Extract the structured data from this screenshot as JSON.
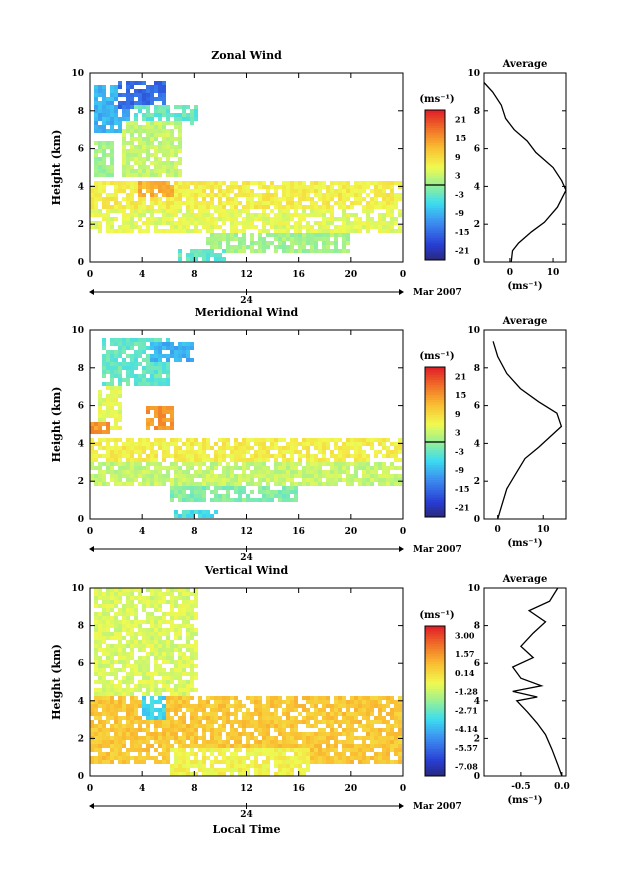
{
  "chart_data": [
    {
      "type": "heatmap",
      "title": "Zonal Wind",
      "ylabel": "Height (km)",
      "xlabel": "",
      "xlim": [
        0,
        24
      ],
      "ylim": [
        0,
        10
      ],
      "x_ticks": [
        "0",
        "4",
        "8",
        "12",
        "16",
        "20",
        "0"
      ],
      "y_ticks": [
        "0",
        "2",
        "4",
        "6",
        "8",
        "10"
      ],
      "day_label": "24",
      "date_label": "Mar 2007",
      "colorbar": {
        "unit": "(ms⁻¹)",
        "ticks": [
          "-21",
          "-15",
          "-9",
          "-3",
          "3",
          "9",
          "15",
          "21"
        ],
        "zero_line": true
      },
      "average_panel": {
        "title": "Average",
        "x_ticks": [
          "0",
          "10"
        ],
        "xlim": [
          -6,
          13
        ],
        "xlabel": "(ms⁻¹)",
        "profile": [
          [
            0.3,
            0
          ],
          [
            0.6,
            0.6
          ],
          [
            2,
            1.0
          ],
          [
            5,
            1.6
          ],
          [
            8,
            2.1
          ],
          [
            11,
            2.9
          ],
          [
            13,
            3.8
          ],
          [
            12,
            4.3
          ],
          [
            10,
            5.0
          ],
          [
            6,
            5.8
          ],
          [
            4,
            6.4
          ],
          [
            1,
            7.0
          ],
          [
            -1,
            7.6
          ],
          [
            -2,
            8.3
          ],
          [
            -4,
            9.0
          ],
          [
            -6,
            9.5
          ]
        ]
      },
      "regions": [
        {
          "x0": 0.3,
          "x1": 3.2,
          "y0": 6.8,
          "y1": 9.3,
          "v": -9
        },
        {
          "x0": 2.3,
          "x1": 5.8,
          "y0": 8.1,
          "y1": 9.6,
          "v": -15
        },
        {
          "x0": 3.5,
          "x1": 8.3,
          "y0": 7.2,
          "y1": 8.4,
          "v": -3
        },
        {
          "x0": 0.3,
          "x1": 1.8,
          "y0": 4.5,
          "y1": 6.4,
          "v": 1
        },
        {
          "x0": 2.5,
          "x1": 7.0,
          "y0": 4.6,
          "y1": 7.4,
          "v": 3
        },
        {
          "x0": 0,
          "x1": 24,
          "y0": 2.6,
          "y1": 4.3,
          "v": 7
        },
        {
          "x0": 0,
          "x1": 24,
          "y0": 1.6,
          "y1": 2.7,
          "v": 5
        },
        {
          "x0": 3.8,
          "x1": 6.5,
          "y0": 3.4,
          "y1": 4.3,
          "v": 13
        },
        {
          "x0": 9,
          "x1": 20,
          "y0": 0.4,
          "y1": 1.6,
          "v": 1
        },
        {
          "x0": 6.8,
          "x1": 10.5,
          "y0": 0,
          "y1": 0.6,
          "v": -3
        }
      ]
    },
    {
      "type": "heatmap",
      "title": "Meridional Wind",
      "ylabel": "Height (km)",
      "xlabel": "",
      "xlim": [
        0,
        24
      ],
      "ylim": [
        0,
        10
      ],
      "x_ticks": [
        "0",
        "4",
        "8",
        "12",
        "16",
        "20",
        "0"
      ],
      "y_ticks": [
        "0",
        "2",
        "4",
        "6",
        "8",
        "10"
      ],
      "day_label": "24",
      "date_label": "Mar 2007",
      "colorbar": {
        "unit": "(ms⁻¹)",
        "ticks": [
          "-21",
          "-15",
          "-9",
          "-3",
          "3",
          "9",
          "15",
          "21"
        ],
        "zero_line": true
      },
      "average_panel": {
        "title": "Average",
        "x_ticks": [
          "0",
          "10"
        ],
        "xlim": [
          -3,
          15
        ],
        "xlabel": "(ms⁻¹)",
        "profile": [
          [
            0,
            0
          ],
          [
            1,
            0.8
          ],
          [
            2,
            1.6
          ],
          [
            4,
            2.4
          ],
          [
            6,
            3.2
          ],
          [
            9,
            3.8
          ],
          [
            14,
            4.9
          ],
          [
            13,
            5.6
          ],
          [
            9,
            6.2
          ],
          [
            5,
            6.9
          ],
          [
            2,
            7.7
          ],
          [
            0,
            8.6
          ],
          [
            -1,
            9.4
          ]
        ]
      },
      "regions": [
        {
          "x0": 1.0,
          "x1": 6.0,
          "y0": 7.0,
          "y1": 9.6,
          "v": -3
        },
        {
          "x0": 4.5,
          "x1": 8.0,
          "y0": 8.3,
          "y1": 9.4,
          "v": -9
        },
        {
          "x0": 0.5,
          "x1": 2.5,
          "y0": 4.8,
          "y1": 7.0,
          "v": 5
        },
        {
          "x0": 0,
          "x1": 1.5,
          "y0": 4.4,
          "y1": 5.2,
          "v": 15
        },
        {
          "x0": 4.3,
          "x1": 6.5,
          "y0": 4.8,
          "y1": 6.0,
          "v": 15
        },
        {
          "x0": 0,
          "x1": 24,
          "y0": 3.0,
          "y1": 4.3,
          "v": 7
        },
        {
          "x0": 0,
          "x1": 24,
          "y0": 1.8,
          "y1": 3.0,
          "v": 3
        },
        {
          "x0": 6,
          "x1": 16,
          "y0": 0.8,
          "y1": 1.8,
          "v": -1
        },
        {
          "x0": 6.5,
          "x1": 9.8,
          "y0": 0,
          "y1": 0.5,
          "v": -5
        }
      ]
    },
    {
      "type": "heatmap",
      "title": "Vertical Wind",
      "ylabel": "Height (km)",
      "xlabel": "Local Time",
      "xlim": [
        0,
        24
      ],
      "ylim": [
        0,
        10
      ],
      "x_ticks": [
        "0",
        "4",
        "8",
        "12",
        "16",
        "20",
        "0"
      ],
      "y_ticks": [
        "0",
        "2",
        "4",
        "6",
        "8",
        "10"
      ],
      "day_label": "24",
      "date_label": "Mar 2007",
      "colorbar": {
        "unit": "(ms⁻¹)",
        "ticks": [
          "-7.08",
          "-5.57",
          "-4.14",
          "-2.71",
          "-1.28",
          "0.14",
          "1.57",
          "3.00"
        ]
      },
      "average_panel": {
        "title": "Average",
        "x_ticks": [
          "-0.5",
          "0.0"
        ],
        "xlim": [
          -0.95,
          0.05
        ],
        "xlabel": "(ms⁻¹)",
        "profile": [
          [
            0,
            0
          ],
          [
            -0.05,
            0.6
          ],
          [
            -0.12,
            1.4
          ],
          [
            -0.2,
            2.2
          ],
          [
            -0.3,
            2.8
          ],
          [
            -0.42,
            3.4
          ],
          [
            -0.55,
            4.0
          ],
          [
            -0.3,
            4.2
          ],
          [
            -0.6,
            4.5
          ],
          [
            -0.25,
            4.8
          ],
          [
            -0.5,
            5.2
          ],
          [
            -0.6,
            5.8
          ],
          [
            -0.35,
            6.3
          ],
          [
            -0.5,
            6.9
          ],
          [
            -0.35,
            7.6
          ],
          [
            -0.2,
            8.2
          ],
          [
            -0.4,
            8.8
          ],
          [
            -0.15,
            9.3
          ],
          [
            -0.05,
            10
          ]
        ]
      },
      "regions": [
        {
          "x0": 0.4,
          "x1": 8.3,
          "y0": 4.2,
          "y1": 10,
          "v": -1.0
        },
        {
          "x0": 0,
          "x1": 24,
          "y0": 0.6,
          "y1": 4.3,
          "v": 0.6
        },
        {
          "x0": 4.0,
          "x1": 5.8,
          "y0": 3.0,
          "y1": 4.3,
          "v": -3.5
        },
        {
          "x0": 6,
          "x1": 17,
          "y0": 0,
          "y1": 1.4,
          "v": -0.5
        }
      ]
    }
  ]
}
